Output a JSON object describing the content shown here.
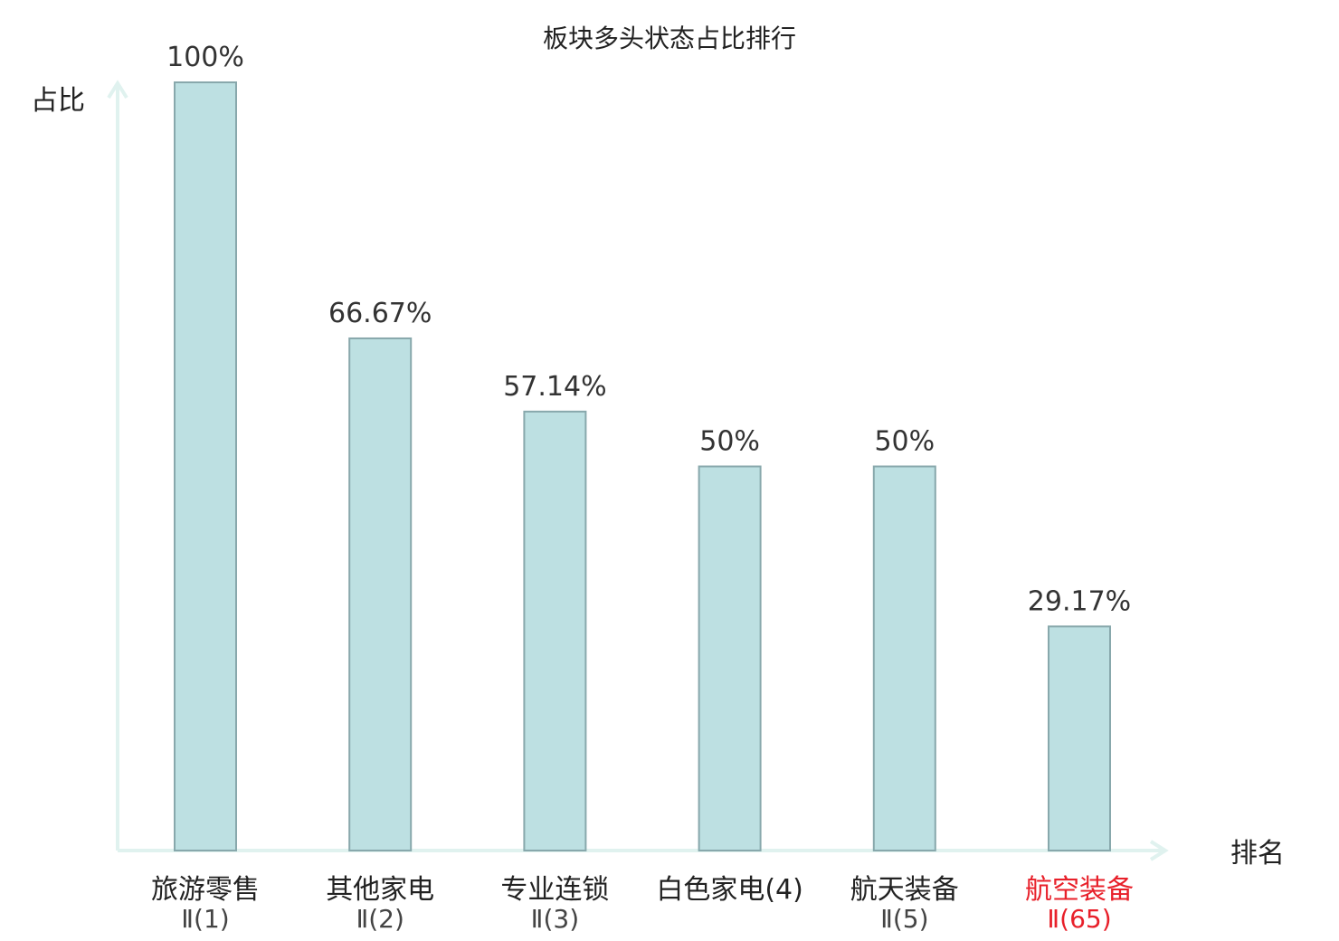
{
  "chart_data": {
    "type": "bar",
    "title": "板块多头状态占比排行",
    "ylabel": "占比",
    "xlabel": "排名",
    "ylim": [
      0,
      100
    ],
    "grid": false,
    "categories": [
      {
        "name": "旅游零售",
        "rank": "Ⅱ(1)",
        "highlight": false
      },
      {
        "name": "其他家电",
        "rank": "Ⅱ(2)",
        "highlight": false
      },
      {
        "name": "专业连锁",
        "rank": "Ⅱ(3)",
        "highlight": false
      },
      {
        "name": "白色家电(4)",
        "rank": "",
        "highlight": false
      },
      {
        "name": "航天装备",
        "rank": "Ⅱ(5)",
        "highlight": false
      },
      {
        "name": "航空装备",
        "rank": "Ⅱ(65)",
        "highlight": true
      }
    ],
    "values": [
      100,
      66.67,
      57.14,
      50,
      50,
      29.17
    ],
    "value_labels": [
      "100%",
      "66.67%",
      "57.14%",
      "50%",
      "50%",
      "29.17%"
    ]
  },
  "colors": {
    "bar_fill": "#bde0e2",
    "bar_stroke": "#88a8ac",
    "axis": "#e0f2ef",
    "highlight_text": "#e8202a",
    "normal_text": "#333333"
  }
}
